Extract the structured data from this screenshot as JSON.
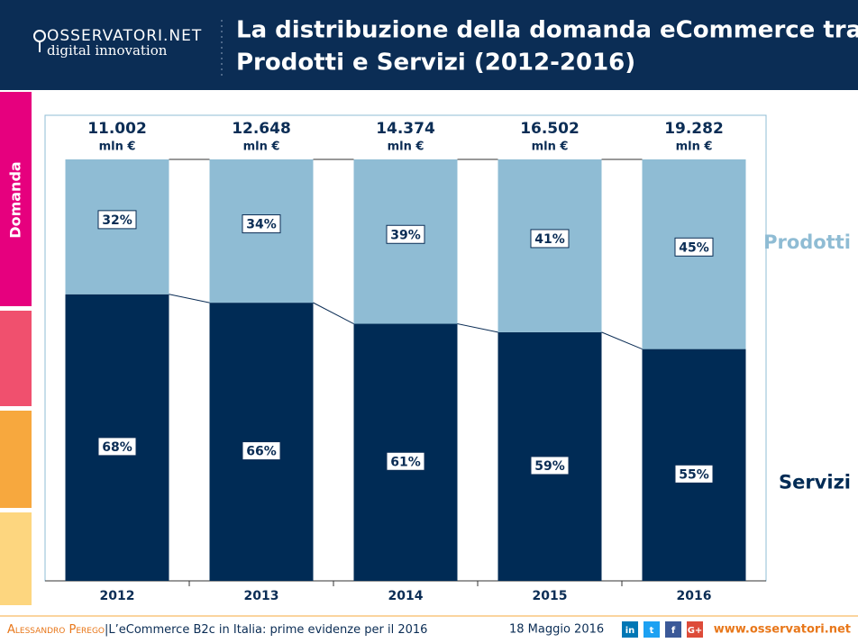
{
  "header": {
    "logo": "OSSERVATORI.NET",
    "logo_sub": "digital innovation",
    "title_line1": "La distribuzione della domanda eCommerce tra",
    "title_line2": "Prodotti e Servizi (2012-2016)"
  },
  "side_label": "Domanda",
  "chart_data": {
    "type": "stacked-bar",
    "categories": [
      "2012",
      "2013",
      "2014",
      "2015",
      "2016"
    ],
    "ylim": [
      0,
      100
    ],
    "series": [
      {
        "name": "Servizi",
        "color": "#002b55",
        "values": [
          68,
          66,
          61,
          59,
          55
        ],
        "value_labels": [
          "68%",
          "66%",
          "61%",
          "59%",
          "55%"
        ]
      },
      {
        "name": "Prodotti",
        "color": "#8fbcd4",
        "values": [
          32,
          34,
          39,
          41,
          45
        ],
        "value_labels": [
          "32%",
          "34%",
          "39%",
          "41%",
          "45%"
        ]
      }
    ],
    "totals": {
      "values": [
        11002,
        12648,
        14374,
        16502,
        19282
      ],
      "value_labels": [
        "11.002",
        "12.648",
        "14.374",
        "16.502",
        "19.282"
      ],
      "unit": "mln €"
    }
  },
  "footer": {
    "author": "Alessandro Perego",
    "subtitle": "|L’eCommerce B2c in Italia: prime evidenze per il 2016",
    "date": "18 Maggio 2016",
    "social": [
      "in",
      "t",
      "f",
      "G+"
    ],
    "url": "www.osservatori.net"
  }
}
